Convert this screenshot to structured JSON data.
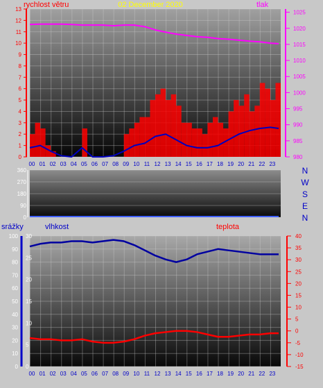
{
  "colors": {
    "frame": "#c8c8c8",
    "wind": "#ff0000",
    "wind_avg": "#0000c0",
    "pressure": "#ff00ff",
    "humidity": "#0000a0",
    "temperature": "#ff0000",
    "rain_axis": "#0000c8",
    "date": "#ffff00",
    "dir_labels": "#0000c8",
    "tick_text": "#ffffff"
  },
  "chart_data": [
    {
      "type": "line",
      "title": "02 December 2020",
      "ylabel": "rychlost větru",
      "y2label": "tlak",
      "x_unit": "hour",
      "xticks": [
        "00",
        "01",
        "02",
        "03",
        "04",
        "05",
        "06",
        "07",
        "08",
        "09",
        "10",
        "11",
        "12",
        "13",
        "14",
        "15",
        "16",
        "17",
        "18",
        "19",
        "20",
        "21",
        "22",
        "23"
      ],
      "ylim": [
        0,
        13
      ],
      "yticks": [
        "0",
        "1",
        "2",
        "3",
        "4",
        "5",
        "6",
        "7",
        "8",
        "9",
        "10",
        "11",
        "12",
        "13"
      ],
      "y2lim": [
        980,
        1026
      ],
      "y2ticks": [
        "980",
        "985",
        "990",
        "995",
        "1000",
        "1005",
        "1010",
        "1015",
        "1020",
        "1025"
      ],
      "series": [
        {
          "axis": "left",
          "style": "bars",
          "x": [
            0,
            0.5,
            1,
            1.5,
            2,
            2.5,
            3,
            3.5,
            4,
            4.5,
            5,
            5.5,
            6,
            6.5,
            7,
            7.5,
            8,
            8.5,
            9,
            9.5,
            10,
            10.5,
            11,
            11.5,
            12,
            12.5,
            13,
            13.5,
            14,
            14.5,
            15,
            15.5,
            16,
            16.5,
            17,
            17.5,
            18,
            18.5,
            19,
            19.5,
            20,
            20.5,
            21,
            21.5,
            22,
            22.5,
            23,
            23.5
          ],
          "values": [
            2,
            3,
            2.5,
            1,
            0.5,
            0,
            0,
            0,
            0,
            0,
            2.5,
            0,
            0,
            0,
            0,
            0,
            0,
            0,
            2,
            2.5,
            3,
            3.5,
            3.5,
            5,
            5.5,
            6,
            5,
            5.5,
            4.5,
            3,
            3,
            2.5,
            2.5,
            2,
            3,
            3.5,
            3,
            2.5,
            4,
            5,
            4.5,
            5.5,
            4,
            4.5,
            6.5,
            6,
            5,
            6.5
          ]
        },
        {
          "axis": "left",
          "style": "line",
          "x": [
            0,
            1,
            2,
            3,
            4,
            5,
            6,
            7,
            8,
            9,
            10,
            11,
            12,
            13,
            14,
            15,
            16,
            17,
            18,
            19,
            20,
            21,
            22,
            23,
            23.8
          ],
          "values": [
            0.8,
            1,
            0.5,
            0.1,
            0,
            0.8,
            0,
            0,
            0.1,
            0.5,
            1,
            1.2,
            1.8,
            2,
            1.5,
            1,
            0.8,
            0.8,
            1,
            1.5,
            2,
            2.3,
            2.5,
            2.6,
            2.5
          ]
        },
        {
          "axis": "right",
          "style": "line",
          "x": [
            0,
            1,
            2,
            3,
            4,
            5,
            6,
            7,
            8,
            9,
            10,
            11,
            12,
            13,
            14,
            15,
            16,
            17,
            18,
            19,
            20,
            21,
            22,
            23,
            23.8
          ],
          "values": [
            1021.2,
            1021.3,
            1021.3,
            1021.3,
            1021.2,
            1021,
            1021,
            1021,
            1020.8,
            1021,
            1021,
            1020.5,
            1019.5,
            1018.8,
            1018.2,
            1017.8,
            1017.4,
            1017.2,
            1016.8,
            1016.6,
            1016.3,
            1016,
            1015.8,
            1015.4,
            1015.2
          ]
        }
      ]
    },
    {
      "type": "scatter",
      "yticks": [
        "0",
        "90",
        "180",
        "270",
        "360"
      ],
      "ylim": [
        0,
        360
      ],
      "dir_labels": [
        "N",
        "W",
        "S",
        "E",
        "N"
      ],
      "x": [
        0,
        23.8
      ],
      "values": [
        0,
        0
      ]
    },
    {
      "type": "line",
      "ylabel": "srážky",
      "y2label": "vlhkost",
      "y3label": "teplota",
      "xticks": [
        "00",
        "01",
        "02",
        "03",
        "04",
        "05",
        "06",
        "07",
        "08",
        "09",
        "10",
        "11",
        "12",
        "13",
        "14",
        "15",
        "16",
        "17",
        "18",
        "19",
        "20",
        "21",
        "22",
        "23"
      ],
      "ylim": [
        0,
        100
      ],
      "yticks": [
        "0",
        "10",
        "20",
        "30",
        "40",
        "50",
        "60",
        "70",
        "80",
        "90",
        "100"
      ],
      "y2lim": [
        0,
        30
      ],
      "y2ticks": [
        "0",
        "5",
        "10",
        "15",
        "20",
        "25",
        "30"
      ],
      "y3lim": [
        -15,
        40
      ],
      "y3ticks": [
        "-15",
        "-10",
        "-5",
        "0",
        "5",
        "10",
        "15",
        "20",
        "25",
        "30",
        "35",
        "40"
      ],
      "series": [
        {
          "axis": "humidity",
          "x": [
            0,
            1,
            2,
            3,
            4,
            5,
            6,
            7,
            8,
            9,
            10,
            11,
            12,
            13,
            14,
            15,
            16,
            17,
            18,
            19,
            20,
            21,
            22,
            23,
            23.8
          ],
          "values": [
            92,
            94,
            95,
            95,
            96,
            96,
            95,
            96,
            97,
            96,
            93,
            89,
            85,
            82,
            80,
            82,
            86,
            88,
            90,
            89,
            88,
            87,
            86,
            86,
            86
          ]
        },
        {
          "axis": "temperature",
          "x": [
            0,
            1,
            2,
            3,
            4,
            5,
            6,
            7,
            8,
            9,
            10,
            11,
            12,
            13,
            14,
            15,
            16,
            17,
            18,
            19,
            20,
            21,
            22,
            23,
            23.8
          ],
          "values": [
            -3,
            -3.5,
            -3.5,
            -4,
            -4,
            -3.5,
            -4.5,
            -5,
            -5,
            -4.5,
            -3.5,
            -2,
            -1,
            -0.5,
            0,
            0,
            -0.5,
            -1.5,
            -2.5,
            -2.5,
            -2,
            -1.5,
            -1.5,
            -1,
            -1
          ]
        }
      ]
    }
  ]
}
